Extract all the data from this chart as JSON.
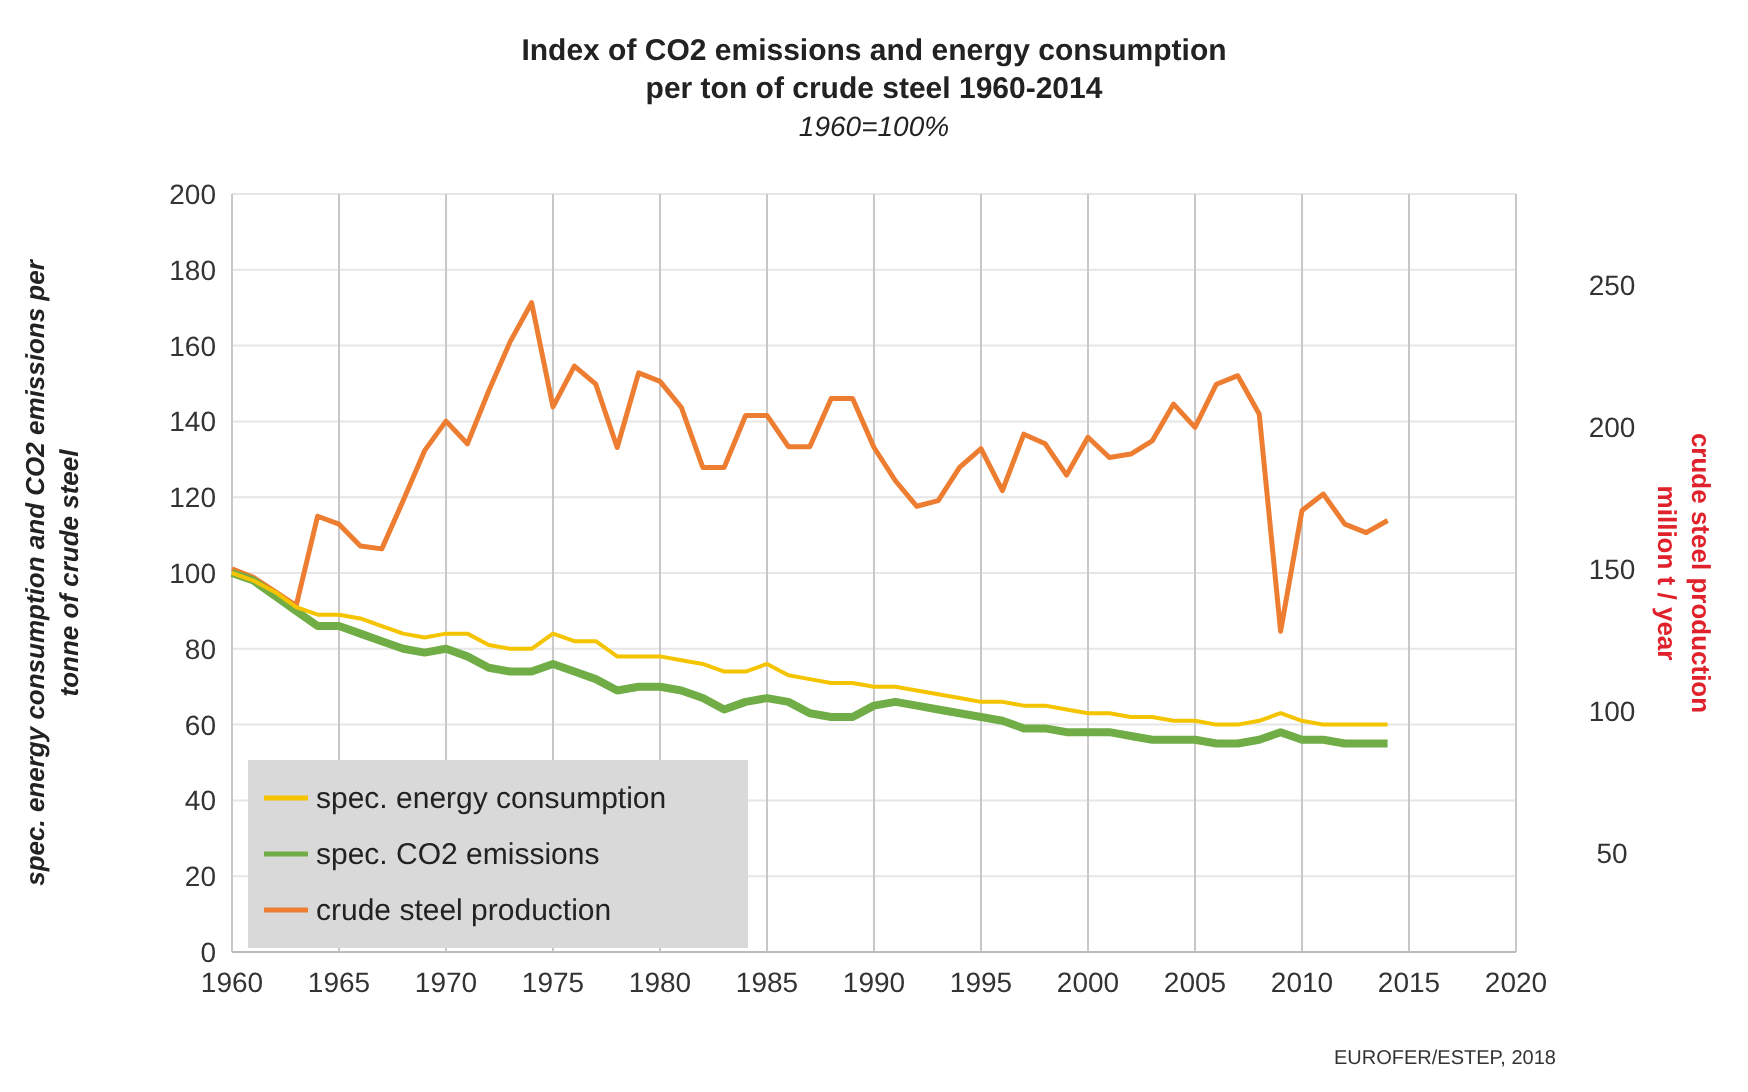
{
  "chart_data": {
    "type": "line",
    "title": "Index of CO2 emissions and energy consumption\nper ton of crude steel 1960-2014",
    "subtitle": "1960=100%",
    "ylabel": "spec. energy consumption and CO2 emissions per\ntonne of crude steel",
    "y2label": "crude steel production\nmillion t / year",
    "annotations": [
      "EUROFER/ESTEP, 2018"
    ],
    "x": [
      1960,
      1961,
      1962,
      1963,
      1964,
      1965,
      1966,
      1967,
      1968,
      1969,
      1970,
      1971,
      1972,
      1973,
      1974,
      1975,
      1976,
      1977,
      1978,
      1979,
      1980,
      1981,
      1982,
      1983,
      1984,
      1985,
      1986,
      1987,
      1988,
      1989,
      1990,
      1991,
      1992,
      1993,
      1994,
      1995,
      1996,
      1997,
      1998,
      1999,
      2000,
      2001,
      2002,
      2003,
      2004,
      2005,
      2006,
      2007,
      2008,
      2009,
      2010,
      2011,
      2012,
      2013,
      2014
    ],
    "series": [
      {
        "name": "spec. energy consumption",
        "color": "#f5c400",
        "values": [
          100,
          98,
          95,
          91,
          89,
          89,
          88,
          86,
          84,
          83,
          84,
          84,
          81,
          80,
          80,
          84,
          82,
          82,
          78,
          78,
          78,
          77,
          76,
          74,
          74,
          76,
          73,
          72,
          71,
          71,
          70,
          70,
          69,
          68,
          67,
          66,
          66,
          65,
          65,
          64,
          63,
          63,
          62,
          62,
          61,
          61,
          60,
          60,
          61,
          63,
          61,
          60,
          60,
          60,
          60
        ]
      },
      {
        "name": "spec. CO2 emissions",
        "color": "#70ad47",
        "values": [
          100,
          98,
          94,
          90,
          86,
          86,
          84,
          82,
          80,
          79,
          80,
          78,
          75,
          74,
          74,
          76,
          74,
          72,
          69,
          70,
          70,
          69,
          67,
          64,
          66,
          67,
          66,
          63,
          62,
          62,
          65,
          66,
          65,
          64,
          63,
          62,
          61,
          59,
          59,
          58,
          58,
          58,
          57,
          56,
          56,
          56,
          55,
          55,
          56,
          58,
          56,
          56,
          55,
          55,
          55
        ]
      },
      {
        "name": "crude steel production",
        "color": "#ed7d31",
        "axis": "y2",
        "values": [
          150,
          147,
          142,
          137,
          168.5,
          165.7,
          158,
          157,
          174,
          191.6,
          202,
          194,
          212.7,
          230,
          243.7,
          207,
          221.4,
          215,
          192.7,
          219,
          216,
          206.8,
          185.7,
          185.7,
          204,
          204,
          193,
          193,
          210,
          210,
          192.7,
          181,
          172,
          174,
          185.7,
          192.3,
          177.5,
          197.4,
          194,
          183,
          196.3,
          189.2,
          190.4,
          195,
          208,
          199.8,
          215,
          218,
          204.5,
          128,
          170.5,
          176.3,
          165.7,
          162.7,
          167
        ]
      }
    ],
    "xlim": [
      1960,
      2020
    ],
    "xticks": [
      1960,
      1965,
      1970,
      1975,
      1980,
      1985,
      1990,
      1995,
      2000,
      2005,
      2010,
      2015,
      2020
    ],
    "ylim": [
      0,
      200
    ],
    "yticks": [
      0,
      20,
      40,
      60,
      80,
      100,
      120,
      140,
      160,
      180,
      200
    ],
    "y2lim": [
      15,
      282
    ],
    "y2ticks": [
      50,
      100,
      150,
      200,
      250
    ],
    "grid": true,
    "legend": "bottom left",
    "line_style": "solid",
    "marker": "none"
  }
}
